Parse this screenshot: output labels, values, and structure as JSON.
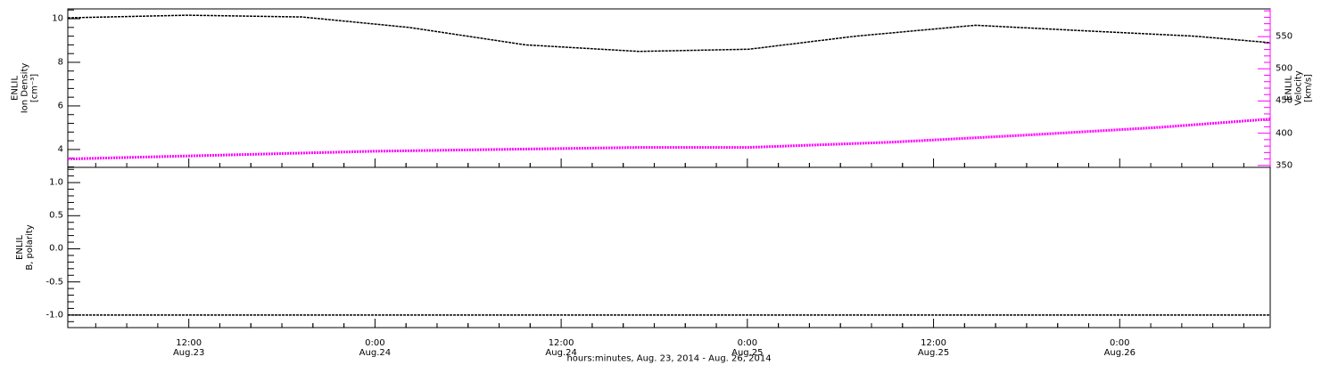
{
  "chart_data": [
    {
      "type": "line",
      "xlim": [
        4.2,
        81.7
      ],
      "ylabel": "ENLIL\nIon Density\n[cm⁻³]",
      "ylim": [
        3.18,
        10.45
      ],
      "yticks": [
        4,
        6,
        8,
        10
      ],
      "y2label": "ENLIL\nVelocity\n[km/s]",
      "y2lim": [
        347,
        593
      ],
      "y2ticks": [
        350,
        400,
        450,
        500,
        550
      ],
      "y2color": "#ff00ff",
      "series": [
        {
          "color": "#000000",
          "x": [
            4.2,
            11.9,
            19.3,
            26.2,
            33.7,
            41.0,
            48.1,
            55.0,
            62.7,
            69.6,
            76.8,
            81.7
          ],
          "values": [
            10.04,
            10.16,
            10.08,
            9.6,
            8.8,
            8.5,
            8.6,
            9.2,
            9.7,
            9.45,
            9.2,
            8.9
          ]
        },
        {
          "color": "#ff00ff",
          "axis": "y2",
          "x": [
            4.2,
            23.9,
            41.2,
            48.1,
            57.2,
            65.9,
            74.5,
            81.7
          ],
          "values": [
            360,
            372,
            378,
            378,
            386,
            397,
            409,
            422
          ]
        }
      ]
    },
    {
      "type": "line",
      "xlim": [
        4.2,
        81.7
      ],
      "xticks": [
        {
          "value": 12,
          "label": "12:00\nAug.23"
        },
        {
          "value": 24,
          "label": "0:00\nAug.24"
        },
        {
          "value": 36,
          "label": "12:00\nAug.24"
        },
        {
          "value": 48,
          "label": "0:00\nAug.25"
        },
        {
          "value": 60,
          "label": "12:00\nAug.25"
        },
        {
          "value": 72,
          "label": "0:00\nAug.26"
        }
      ],
      "xlabel": "hours:minutes, Aug. 23, 2014 - Aug. 26, 2014",
      "ylabel": "ENLIL\nB, polarity",
      "ylim": [
        -1.19,
        1.23
      ],
      "yticks": [
        {
          "value": -1,
          "label": "-1.0"
        },
        {
          "value": -0.5,
          "label": "-0.5"
        },
        {
          "value": 0,
          "label": "0.0"
        },
        {
          "value": 0.5,
          "label": "0.5"
        },
        {
          "value": 1,
          "label": "1.0"
        }
      ],
      "series": [
        {
          "color": "#000000",
          "x": [
            4.2,
            81.7
          ],
          "values": [
            -1,
            -1
          ]
        }
      ]
    }
  ]
}
